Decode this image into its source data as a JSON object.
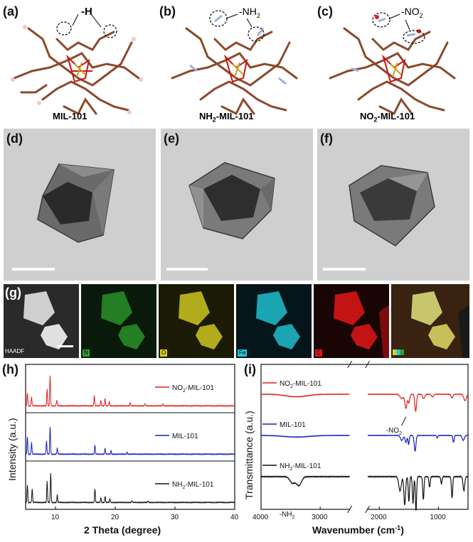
{
  "panels": {
    "a": {
      "letter": "(a)",
      "group": "-H",
      "name": "MIL-101"
    },
    "b": {
      "letter": "(b)",
      "group": "-NH",
      "group_sub": "2",
      "name_pre": "NH",
      "name_sub": "2",
      "name_post": "-MIL-101"
    },
    "c": {
      "letter": "(c)",
      "group": "-NO",
      "group_sub": "2",
      "name_pre": "NO",
      "name_sub": "2",
      "name_post": "-MIL-101"
    },
    "d": {
      "letter": "(d)"
    },
    "e": {
      "letter": "(e)"
    },
    "f": {
      "letter": "(f)"
    },
    "g": {
      "letter": "(g)",
      "maps": [
        "HAADF",
        "N",
        "O",
        "Fe",
        "C",
        ""
      ]
    },
    "h": {
      "letter": "(h)"
    },
    "i": {
      "letter": "(i)"
    }
  },
  "colors": {
    "red": "#e02020",
    "blue": "#1020c0",
    "black": "#111111",
    "N": "#2ea02e",
    "O": "#d8d020",
    "Fe": "#20c8d8",
    "C": "#e01818"
  },
  "chart_data": [
    {
      "type": "line",
      "panel": "h",
      "xlabel": "2 Theta (degree)",
      "ylabel": "Intensity (a.u.)",
      "xlim": [
        5,
        40
      ],
      "xticks": [
        10,
        20,
        30,
        40
      ],
      "series": [
        {
          "name": "NO2-MIL-101",
          "label_pre": "NO",
          "label_sub": "2",
          "label_post": "-MIL-101",
          "color": "#e02020",
          "peaks": [
            [
              5.3,
              0.45
            ],
            [
              6.0,
              0.3
            ],
            [
              8.6,
              0.55
            ],
            [
              9.1,
              1.0
            ],
            [
              10.2,
              0.2
            ],
            [
              16.5,
              0.35
            ],
            [
              17.6,
              0.18
            ],
            [
              18.3,
              0.25
            ],
            [
              19.0,
              0.15
            ],
            [
              22.5,
              0.1
            ],
            [
              25.0,
              0.08
            ],
            [
              28.0,
              0.07
            ]
          ]
        },
        {
          "name": "MIL-101",
          "label_pre": "MIL-101",
          "label_sub": "",
          "label_post": "",
          "color": "#1020c0",
          "peaks": [
            [
              5.3,
              0.6
            ],
            [
              6.0,
              0.4
            ],
            [
              8.5,
              0.45
            ],
            [
              9.1,
              0.9
            ],
            [
              10.3,
              0.2
            ],
            [
              16.6,
              0.3
            ],
            [
              18.3,
              0.2
            ],
            [
              19.3,
              0.12
            ],
            [
              22.0,
              0.06
            ]
          ]
        },
        {
          "name": "NH2-MIL-101",
          "label_pre": "NH",
          "label_sub": "2",
          "label_post": "-MIL-101",
          "color": "#111111",
          "peaks": [
            [
              5.3,
              0.6
            ],
            [
              6.1,
              0.45
            ],
            [
              8.6,
              0.7
            ],
            [
              9.2,
              1.0
            ],
            [
              10.3,
              0.25
            ],
            [
              16.6,
              0.45
            ],
            [
              17.6,
              0.15
            ],
            [
              18.3,
              0.2
            ],
            [
              19.1,
              0.12
            ],
            [
              22.8,
              0.06
            ],
            [
              25.5,
              0.05
            ]
          ]
        }
      ]
    },
    {
      "type": "line",
      "panel": "i",
      "xlabel": "Wavenumber (cm-1)",
      "xlabel_pre": "Wavenumber (cm",
      "xlabel_sup": "-1",
      "xlabel_post": ")",
      "ylabel": "Transmittance (a.u.)",
      "xlim": [
        4000,
        500
      ],
      "xticks": [
        4000,
        3000,
        2000,
        1000
      ],
      "axis_break": [
        2500,
        2200
      ],
      "annotations": [
        {
          "text_pre": "-NO",
          "text_sub": "2",
          "series": "NO2-MIL-101",
          "x": 1550
        },
        {
          "text_pre": "-NH",
          "text_sub": "2",
          "series": "NH2-MIL-101",
          "x": 3450
        }
      ],
      "series": [
        {
          "name": "NO2-MIL-101",
          "label_pre": "NO",
          "label_sub": "2",
          "label_post": "-MIL-101",
          "color": "#e02020",
          "dips": [
            [
              3400,
              0.12,
              250
            ],
            [
              1620,
              0.2,
              40
            ],
            [
              1550,
              0.65,
              25
            ],
            [
              1500,
              0.4,
              20
            ],
            [
              1385,
              0.8,
              20
            ],
            [
              1250,
              0.2,
              25
            ],
            [
              1100,
              0.12,
              25
            ],
            [
              770,
              0.18,
              20
            ],
            [
              550,
              0.3,
              30
            ]
          ]
        },
        {
          "name": "MIL-101",
          "label_pre": "MIL-101",
          "label_sub": "",
          "label_post": "",
          "color": "#1020c0",
          "dips": [
            [
              3400,
              0.08,
              300
            ],
            [
              1620,
              0.25,
              30
            ],
            [
              1550,
              0.35,
              20
            ],
            [
              1505,
              0.45,
              15
            ],
            [
              1395,
              0.8,
              20
            ],
            [
              1020,
              0.12,
              15
            ],
            [
              745,
              0.35,
              15
            ],
            [
              580,
              0.25,
              25
            ]
          ]
        },
        {
          "name": "NH2-MIL-101",
          "label_pre": "NH",
          "label_sub": "2",
          "label_post": "-MIL-101",
          "color": "#111111",
          "dips": [
            [
              3470,
              0.18,
              60
            ],
            [
              3360,
              0.25,
              60
            ],
            [
              1650,
              0.4,
              30
            ],
            [
              1570,
              0.8,
              20
            ],
            [
              1500,
              0.7,
              15
            ],
            [
              1430,
              0.75,
              15
            ],
            [
              1380,
              0.95,
              15
            ],
            [
              1255,
              0.65,
              15
            ],
            [
              1150,
              0.3,
              15
            ],
            [
              950,
              0.2,
              15
            ],
            [
              770,
              0.6,
              15
            ],
            [
              570,
              0.4,
              20
            ]
          ]
        }
      ]
    }
  ]
}
